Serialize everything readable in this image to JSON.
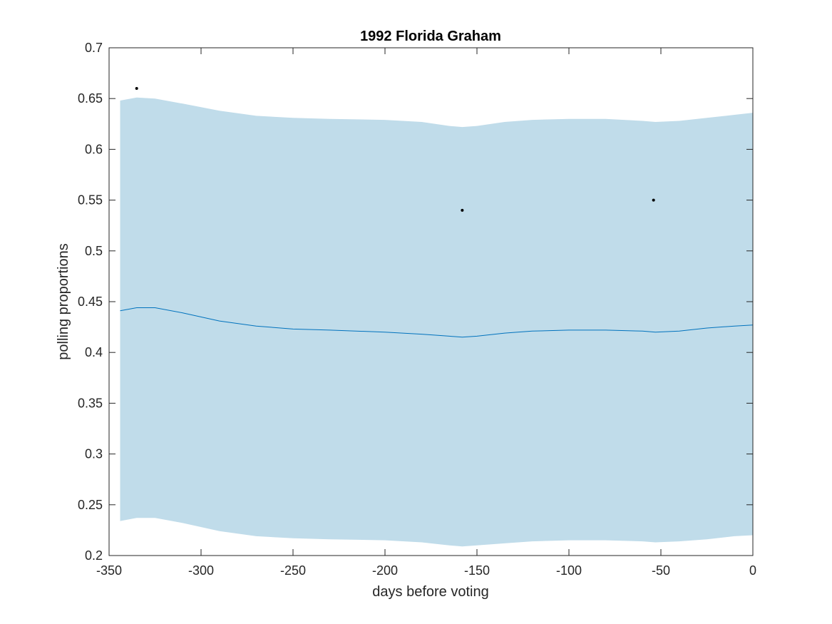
{
  "chart_data": {
    "type": "line",
    "title": "1992 Florida Graham",
    "xlabel": "days before voting",
    "ylabel": "polling proportions",
    "xlim": [
      -350,
      0
    ],
    "ylim": [
      0.2,
      0.7
    ],
    "xticks": [
      -350,
      -300,
      -250,
      -200,
      -150,
      -100,
      -50,
      0
    ],
    "xtick_labels": [
      "-350",
      "-300",
      "-250",
      "-200",
      "-150",
      "-100",
      "-50",
      "0"
    ],
    "yticks": [
      0.2,
      0.25,
      0.3,
      0.35,
      0.4,
      0.45,
      0.5,
      0.55,
      0.6,
      0.65,
      0.7
    ],
    "ytick_labels": [
      "0.2",
      "0.25",
      "0.3",
      "0.35",
      "0.4",
      "0.45",
      "0.5",
      "0.55",
      "0.6",
      "0.65",
      "0.7"
    ],
    "grid": false,
    "colors": {
      "band": "#c0dcea",
      "line": "#0072bd",
      "points": "#000000",
      "axes": "#262626"
    },
    "band": {
      "x": [
        -344,
        -335,
        -325,
        -310,
        -290,
        -270,
        -250,
        -230,
        -200,
        -180,
        -165,
        -158,
        -150,
        -135,
        -120,
        -100,
        -80,
        -60,
        -53,
        -40,
        -25,
        -10,
        0
      ],
      "upper": [
        0.648,
        0.651,
        0.65,
        0.645,
        0.638,
        0.633,
        0.631,
        0.63,
        0.629,
        0.627,
        0.623,
        0.622,
        0.623,
        0.627,
        0.629,
        0.63,
        0.63,
        0.628,
        0.627,
        0.628,
        0.631,
        0.634,
        0.636
      ],
      "lower": [
        0.234,
        0.237,
        0.237,
        0.232,
        0.224,
        0.219,
        0.217,
        0.216,
        0.215,
        0.213,
        0.21,
        0.209,
        0.21,
        0.212,
        0.214,
        0.215,
        0.215,
        0.214,
        0.213,
        0.214,
        0.216,
        0.219,
        0.22
      ]
    },
    "series": [
      {
        "x": [
          -344,
          -335,
          -325,
          -310,
          -290,
          -270,
          -250,
          -230,
          -200,
          -180,
          -165,
          -158,
          -150,
          -135,
          -120,
          -100,
          -80,
          -60,
          -53,
          -40,
          -25,
          -10,
          0
        ],
        "values": [
          0.441,
          0.444,
          0.444,
          0.439,
          0.431,
          0.426,
          0.423,
          0.422,
          0.42,
          0.418,
          0.416,
          0.415,
          0.416,
          0.419,
          0.421,
          0.422,
          0.422,
          0.421,
          0.42,
          0.421,
          0.424,
          0.426,
          0.427
        ]
      }
    ],
    "points": [
      {
        "x": -335,
        "y": 0.66
      },
      {
        "x": -158,
        "y": 0.54
      },
      {
        "x": -54,
        "y": 0.55
      }
    ]
  }
}
